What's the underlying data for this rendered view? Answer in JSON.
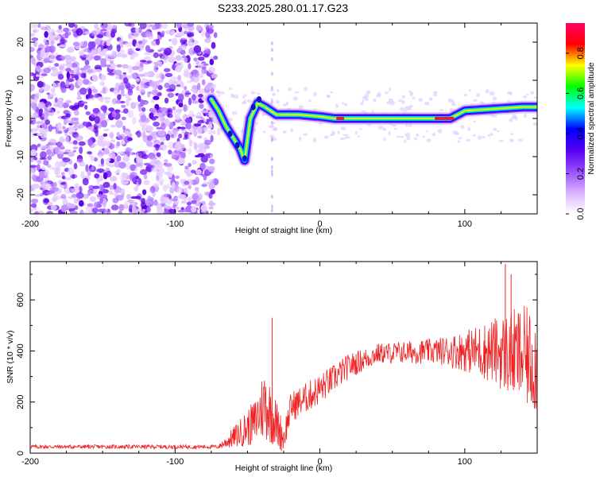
{
  "title": "S233.2025.280.01.17.G23",
  "chart_data": [
    {
      "type": "heatmap",
      "xlabel": "Height of straight line (km)",
      "ylabel": "Frequency (Hz)",
      "xlim": [
        -200,
        150
      ],
      "ylim": [
        -25,
        25
      ],
      "x_ticks": [
        -200,
        -100,
        0,
        100
      ],
      "y_ticks": [
        -20,
        -10,
        0,
        10,
        20
      ],
      "colorbar": {
        "label": "Normalized spectral amplitude",
        "range": [
          0,
          0.95
        ],
        "ticks": [
          "0.0",
          "0.2",
          "0.4",
          "0.6",
          "0.8"
        ],
        "colormap": [
          "#ffffff",
          "#d9b3ff",
          "#9a4dff",
          "#5500ee",
          "#0000ff",
          "#00ffff",
          "#00ff00",
          "#ffff00",
          "#ff0000",
          "#ff0066"
        ]
      },
      "noise_region_x": [
        -200,
        -75
      ],
      "ridge": [
        {
          "x": -75,
          "y": 5
        },
        {
          "x": -70,
          "y": 2
        },
        {
          "x": -65,
          "y": -2
        },
        {
          "x": -60,
          "y": -5
        },
        {
          "x": -55,
          "y": -8
        },
        {
          "x": -52,
          "y": -11
        },
        {
          "x": -48,
          "y": 0
        },
        {
          "x": -43,
          "y": 4
        },
        {
          "x": -38,
          "y": 3
        },
        {
          "x": -30,
          "y": 1
        },
        {
          "x": -15,
          "y": 1
        },
        {
          "x": 0,
          "y": 0.5
        },
        {
          "x": 10,
          "y": 0
        },
        {
          "x": 40,
          "y": 0
        },
        {
          "x": 90,
          "y": 0
        },
        {
          "x": 100,
          "y": 2
        },
        {
          "x": 120,
          "y": 2.5
        },
        {
          "x": 140,
          "y": 3
        },
        {
          "x": 150,
          "y": 3
        }
      ]
    },
    {
      "type": "line",
      "xlabel": "Height of straight line (km)",
      "ylabel": "SNR (10 * v/v)",
      "xlim": [
        -200,
        150
      ],
      "ylim": [
        0,
        750
      ],
      "x_ticks": [
        -200,
        -100,
        0,
        100
      ],
      "y_ticks": [
        0,
        200,
        400,
        600
      ],
      "color": "#ee2222",
      "envelope": [
        {
          "x": -200,
          "mean": 25,
          "spread": 8
        },
        {
          "x": -70,
          "mean": 25,
          "spread": 8
        },
        {
          "x": -60,
          "mean": 60,
          "spread": 40
        },
        {
          "x": -45,
          "mean": 120,
          "spread": 90
        },
        {
          "x": -38,
          "mean": 200,
          "spread": 150
        },
        {
          "x": -25,
          "mean": 60,
          "spread": 60
        },
        {
          "x": -20,
          "mean": 180,
          "spread": 60
        },
        {
          "x": 0,
          "mean": 250,
          "spread": 60
        },
        {
          "x": 20,
          "mean": 340,
          "spread": 50
        },
        {
          "x": 40,
          "mean": 390,
          "spread": 40
        },
        {
          "x": 80,
          "mean": 400,
          "spread": 50
        },
        {
          "x": 100,
          "mean": 400,
          "spread": 80
        },
        {
          "x": 120,
          "mean": 400,
          "spread": 130
        },
        {
          "x": 140,
          "mean": 380,
          "spread": 200
        },
        {
          "x": 150,
          "mean": 350,
          "spread": 200
        }
      ],
      "peaks": [
        {
          "x": -33,
          "y": 530
        },
        {
          "x": 132,
          "y": 700
        },
        {
          "x": 128,
          "y": 740
        }
      ]
    }
  ]
}
